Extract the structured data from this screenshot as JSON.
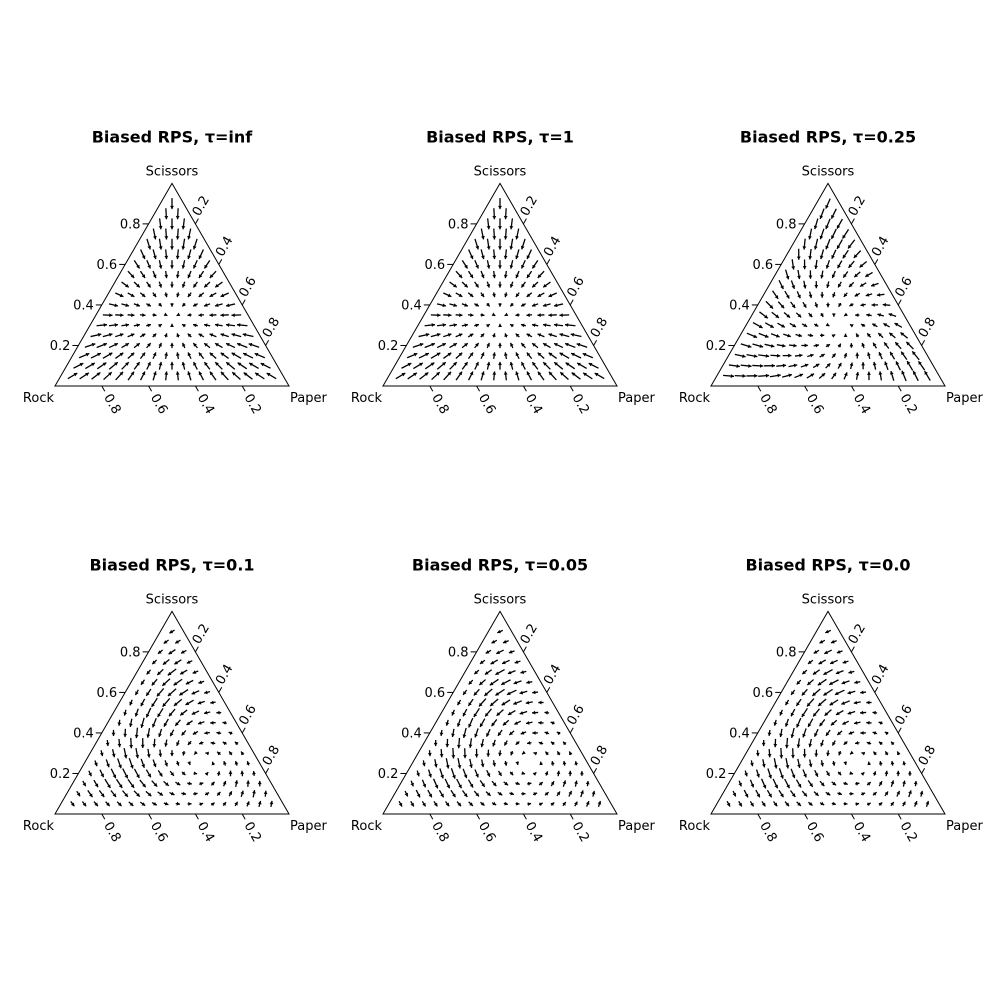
{
  "chart_data": [
    {
      "type": "ternary-quiver",
      "title": "Biased RPS, τ=inf",
      "tau": "inf",
      "vertices": {
        "top": "Scissors",
        "left": "Rock",
        "right": "Paper"
      },
      "ticks": {
        "left_axis": [
          "0.2",
          "0.4",
          "0.6",
          "0.8"
        ],
        "right_axis": [
          "0.2",
          "0.4",
          "0.6",
          "0.8"
        ],
        "bottom_axis": [
          "0.8",
          "0.6",
          "0.4",
          "0.2"
        ]
      },
      "field": {
        "rest_point": {
          "rock": 0.333,
          "paper": 0.333,
          "scissors": 0.333
        },
        "flow": "radial toward interior rest point"
      }
    },
    {
      "type": "ternary-quiver",
      "title": "Biased RPS, τ=1",
      "tau": "1",
      "vertices": {
        "top": "Scissors",
        "left": "Rock",
        "right": "Paper"
      },
      "ticks": {
        "left_axis": [
          "0.2",
          "0.4",
          "0.6",
          "0.8"
        ],
        "right_axis": [
          "0.2",
          "0.4",
          "0.6",
          "0.8"
        ],
        "bottom_axis": [
          "0.8",
          "0.6",
          "0.4",
          "0.2"
        ]
      },
      "field": {
        "rest_point": {
          "rock": 0.333,
          "paper": 0.333,
          "scissors": 0.333
        },
        "flow": "radial toward interior rest point"
      }
    },
    {
      "type": "ternary-quiver",
      "title": "Biased RPS, τ=0.25",
      "tau": "0.25",
      "vertices": {
        "top": "Scissors",
        "left": "Rock",
        "right": "Paper"
      },
      "ticks": {
        "left_axis": [
          "0.2",
          "0.4",
          "0.6",
          "0.8"
        ],
        "right_axis": [
          "0.2",
          "0.4",
          "0.6",
          "0.8"
        ],
        "bottom_axis": [
          "0.8",
          "0.6",
          "0.4",
          "0.2"
        ]
      },
      "field": {
        "rest_point": {
          "rock": 0.3,
          "paper": 0.4,
          "scissors": 0.3
        },
        "flow": "mostly radial with slight rotation"
      }
    },
    {
      "type": "ternary-quiver",
      "title": "Biased RPS, τ=0.1",
      "tau": "0.1",
      "vertices": {
        "top": "Scissors",
        "left": "Rock",
        "right": "Paper"
      },
      "ticks": {
        "left_axis": [
          "0.2",
          "0.4",
          "0.6",
          "0.8"
        ],
        "right_axis": [
          "0.2",
          "0.4",
          "0.6",
          "0.8"
        ],
        "bottom_axis": [
          "0.8",
          "0.6",
          "0.4",
          "0.2"
        ]
      },
      "field": {
        "rest_point": {
          "rock": 0.25,
          "paper": 0.5,
          "scissors": 0.25
        },
        "flow": "rotational cycle Rock→Paper→Scissors"
      }
    },
    {
      "type": "ternary-quiver",
      "title": "Biased RPS, τ=0.05",
      "tau": "0.05",
      "vertices": {
        "top": "Scissors",
        "left": "Rock",
        "right": "Paper"
      },
      "ticks": {
        "left_axis": [
          "0.2",
          "0.4",
          "0.6",
          "0.8"
        ],
        "right_axis": [
          "0.2",
          "0.4",
          "0.6",
          "0.8"
        ],
        "bottom_axis": [
          "0.8",
          "0.6",
          "0.4",
          "0.2"
        ]
      },
      "field": {
        "rest_point": {
          "rock": 0.25,
          "paper": 0.5,
          "scissors": 0.25
        },
        "flow": "rotational cycle Rock→Paper→Scissors"
      }
    },
    {
      "type": "ternary-quiver",
      "title": "Biased RPS, τ=0.0",
      "tau": "0.0",
      "vertices": {
        "top": "Scissors",
        "left": "Rock",
        "right": "Paper"
      },
      "ticks": {
        "left_axis": [
          "0.2",
          "0.4",
          "0.6",
          "0.8"
        ],
        "right_axis": [
          "0.2",
          "0.4",
          "0.6",
          "0.8"
        ],
        "bottom_axis": [
          "0.8",
          "0.6",
          "0.4",
          "0.2"
        ]
      },
      "field": {
        "rest_point": {
          "rock": 0.25,
          "paper": 0.5,
          "scissors": 0.25
        },
        "flow": "rotational cycle Rock→Paper→Scissors"
      }
    }
  ]
}
